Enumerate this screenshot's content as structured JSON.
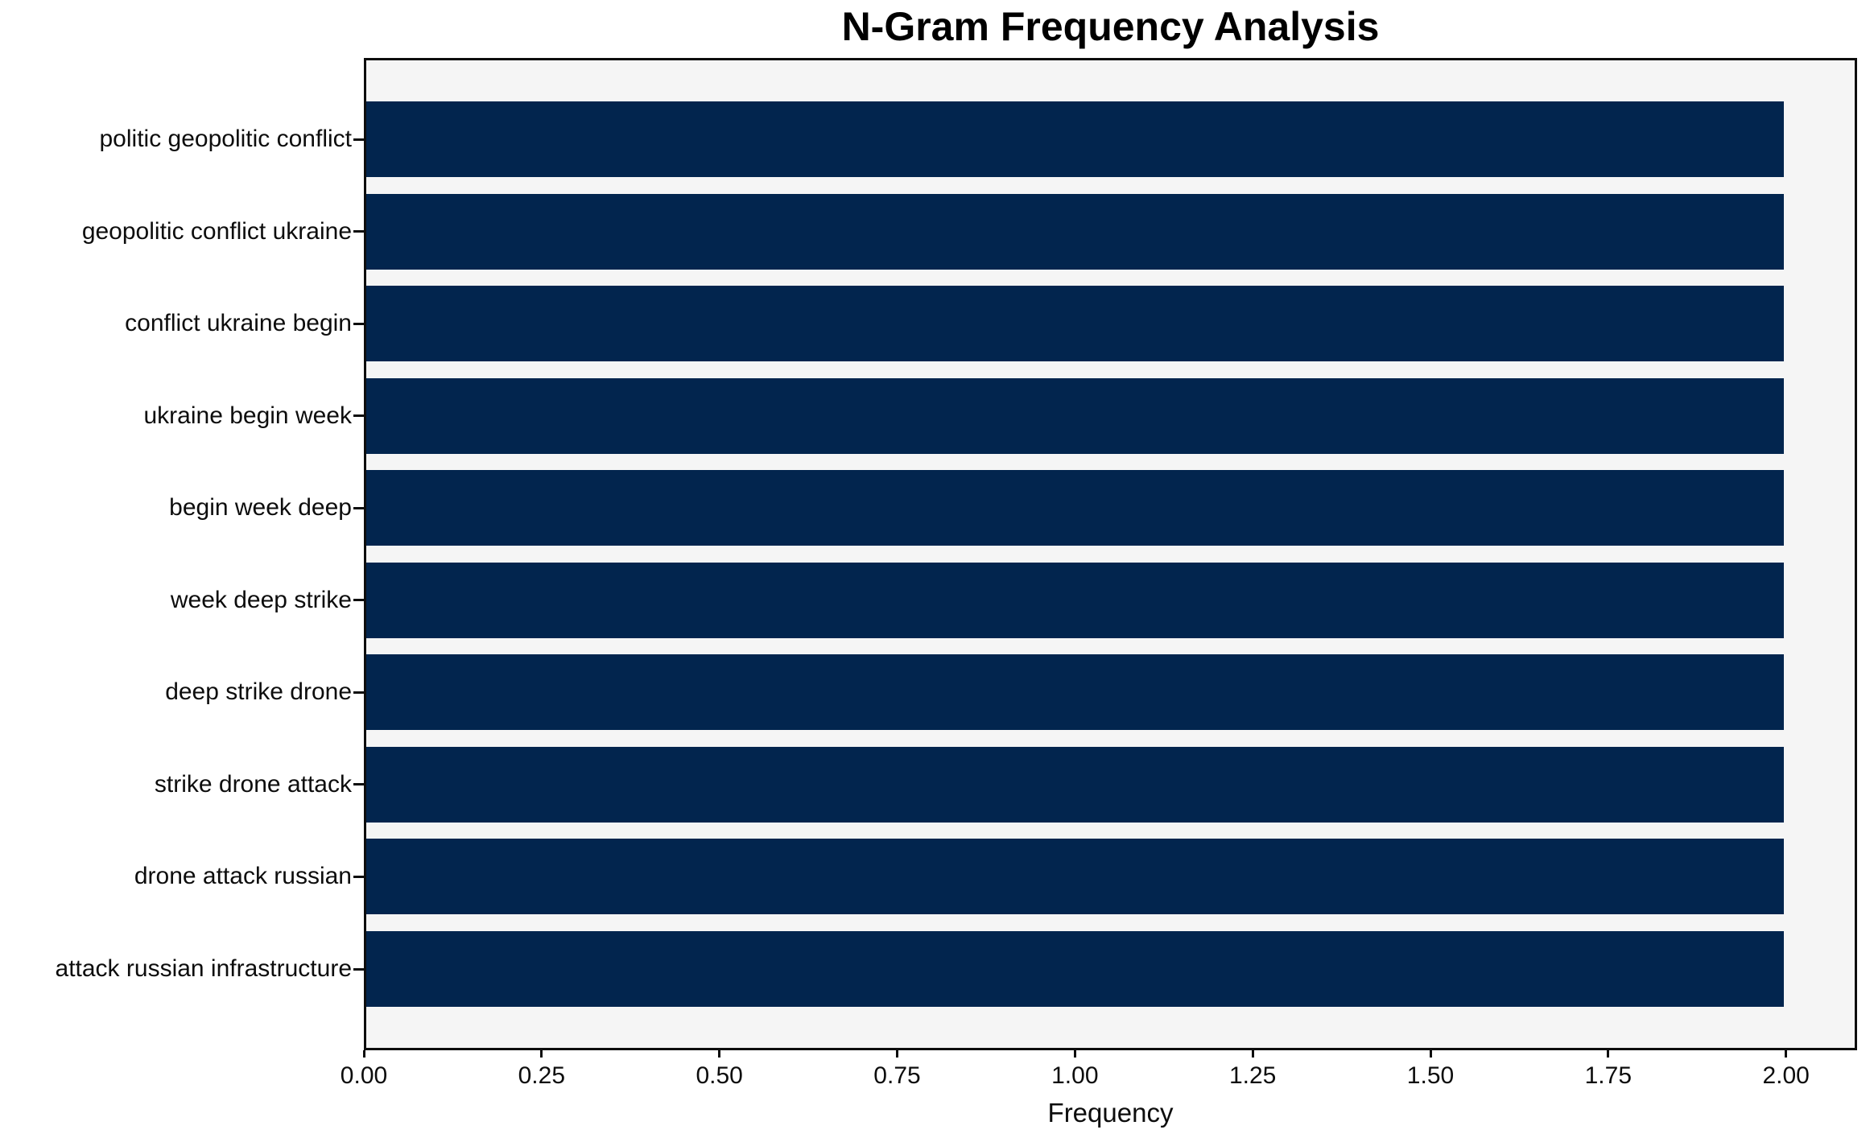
{
  "chart_data": {
    "type": "bar",
    "orientation": "horizontal",
    "title": "N-Gram Frequency Analysis",
    "xlabel": "Frequency",
    "ylabel": "",
    "categories": [
      "politic geopolitic conflict",
      "geopolitic conflict ukraine",
      "conflict ukraine begin",
      "ukraine begin week",
      "begin week deep",
      "week deep strike",
      "deep strike drone",
      "strike drone attack",
      "drone attack russian",
      "attack russian infrastructure"
    ],
    "values": [
      2,
      2,
      2,
      2,
      2,
      2,
      2,
      2,
      2,
      2
    ],
    "xlim": [
      0,
      2.1
    ],
    "x_ticks": [
      0,
      0.25,
      0.5,
      0.75,
      1.0,
      1.25,
      1.5,
      1.75,
      2.0
    ],
    "x_tick_labels": [
      "0.00",
      "0.25",
      "0.50",
      "0.75",
      "1.00",
      "1.25",
      "1.50",
      "1.75",
      "2.00"
    ],
    "grid": false,
    "legend": "none",
    "colors": {
      "bar": "#02254e",
      "plot_bg": "#f5f5f5",
      "figure_bg": "#ffffff",
      "spine": "#0d0d0d",
      "text": "#0d0d0d"
    }
  }
}
